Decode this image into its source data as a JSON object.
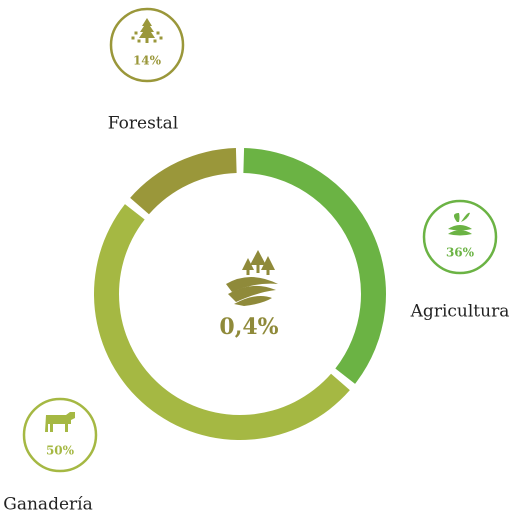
{
  "chart_data": {
    "type": "donut",
    "center_label": "0,4%",
    "categories": [
      "Agricultura",
      "Ganadería",
      "Forestal"
    ],
    "values": [
      36,
      50,
      14
    ],
    "value_labels": [
      "36%",
      "50%",
      "14%"
    ],
    "colors": [
      "#6bb344",
      "#a5b843",
      "#9a973a"
    ]
  }
}
